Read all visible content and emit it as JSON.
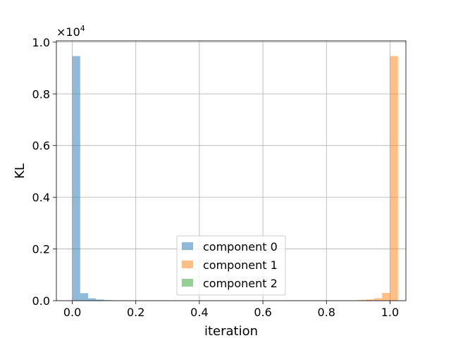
{
  "chart_data": {
    "type": "bar",
    "title": "",
    "xlabel": "iteration",
    "ylabel": "KL",
    "y_multiplier_base": "×10",
    "y_multiplier_exp": "4",
    "xlim": [
      -0.05,
      1.05
    ],
    "ylim": [
      0,
      10050
    ],
    "xticks": [
      0.0,
      0.2,
      0.4,
      0.6,
      0.8,
      1.0
    ],
    "xtick_labels": [
      "0.0",
      "0.2",
      "0.4",
      "0.6",
      "0.8",
      "1.0"
    ],
    "yticks": [
      0,
      2000,
      4000,
      6000,
      8000,
      10000
    ],
    "ytick_labels": [
      "0.0",
      "0.2",
      "0.4",
      "0.6",
      "0.8",
      "1.0"
    ],
    "grid": true,
    "legend_position": "lower center",
    "bin_width": 0.025,
    "series": [
      {
        "name": "component 0",
        "color": "#1f77b4",
        "alpha": 0.5,
        "bins": [
          {
            "x": 0.0,
            "value": 9460
          },
          {
            "x": 0.025,
            "value": 290
          },
          {
            "x": 0.05,
            "value": 90
          },
          {
            "x": 0.075,
            "value": 45
          },
          {
            "x": 0.1,
            "value": 20
          },
          {
            "x": 0.125,
            "value": 8
          }
        ]
      },
      {
        "name": "component 1",
        "color": "#ff7f0e",
        "alpha": 0.5,
        "bins": [
          {
            "x": 0.85,
            "value": 5
          },
          {
            "x": 0.875,
            "value": 10
          },
          {
            "x": 0.9,
            "value": 25
          },
          {
            "x": 0.925,
            "value": 50
          },
          {
            "x": 0.95,
            "value": 95
          },
          {
            "x": 0.975,
            "value": 300
          },
          {
            "x": 1.0,
            "value": 9460
          }
        ]
      },
      {
        "name": "component 2",
        "color": "#2ca02c",
        "alpha": 0.5,
        "bins": []
      }
    ]
  }
}
